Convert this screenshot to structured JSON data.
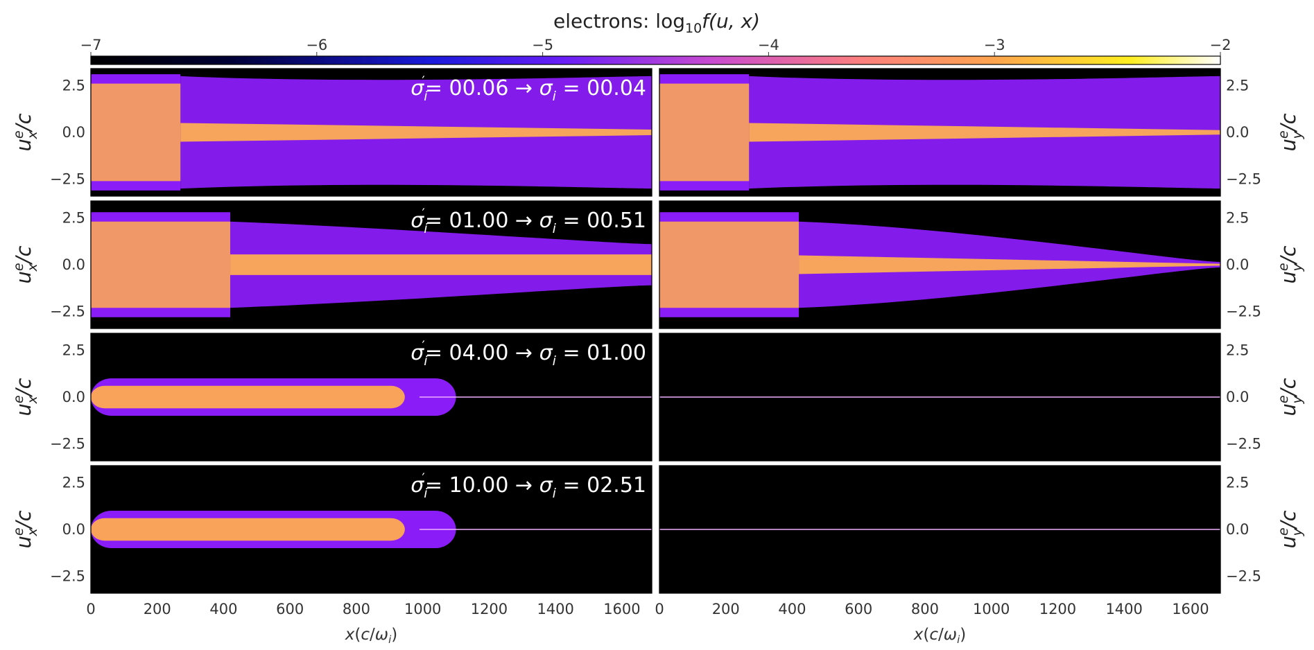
{
  "title": "electrons: log10 f(u, x)",
  "title_parts": {
    "prefix": "electrons: log",
    "sub": "10",
    "func": "f(u, x)"
  },
  "colorbar": {
    "colormap": "gnuplot2",
    "ticks": [
      "−7",
      "−6",
      "−5",
      "−4",
      "−3",
      "−2"
    ],
    "range": [
      -7,
      -2
    ]
  },
  "chart_data": {
    "type": "heatmap",
    "description": "Phase-space density of electrons (log10 f) in 4 rows x 2 columns of panels",
    "x": {
      "label": "x(c/ωi)",
      "range": [
        0,
        1690
      ],
      "ticks": [
        "0",
        "200",
        "400",
        "600",
        "800",
        "1000",
        "1200",
        "1400",
        "1600"
      ]
    },
    "y_left": {
      "label": "u_x^e/c",
      "ticks": [
        "2.5",
        "0.0",
        "−2.5"
      ],
      "range": [
        -3.4,
        3.4
      ]
    },
    "y_right": {
      "label": "u_y^e/c",
      "ticks": [
        "2.5",
        "0.0",
        "−2.5"
      ],
      "range": [
        -3.4,
        3.4
      ]
    },
    "rows": [
      {
        "sigma_prime": "00.06",
        "sigma": "00.04",
        "annotation": "σ′i = 00.06 → σi = 00.04",
        "left": {
          "front_x": 270,
          "hot_halfwidth": 2.6,
          "beam_halfwidth_end": 0.15,
          "halo_halfwidth_end": 3.0
        },
        "right": {
          "front_x": 270,
          "hot_halfwidth": 2.6,
          "beam_halfwidth_end": 0.12,
          "halo_halfwidth_end": 3.0
        }
      },
      {
        "sigma_prime": "01.00",
        "sigma": "00.51",
        "annotation": "σ′i = 01.00 → σi = 00.51",
        "left": {
          "front_x": 420,
          "hot_halfwidth": 2.3,
          "beam_halfwidth_end": 0.55,
          "halo_halfwidth_end": 1.1
        },
        "right": {
          "front_x": 420,
          "hot_halfwidth": 2.3,
          "beam_halfwidth_end": 0.05,
          "halo_halfwidth_end": 0.15
        }
      },
      {
        "sigma_prime": "04.00",
        "sigma": "01.00",
        "annotation": "σ′i = 04.00 → σi = 01.00",
        "left": {
          "front_x": 1100,
          "hot_halfwidth": 1.0,
          "beam_halfwidth_end": 0.02,
          "halo_halfwidth_end": 0.02
        },
        "right": {
          "front_x": 0,
          "hot_halfwidth": 0.0,
          "beam_halfwidth_end": 0.02,
          "halo_halfwidth_end": 0.02
        }
      },
      {
        "sigma_prime": "10.00",
        "sigma": "02.51",
        "annotation": "σ′i = 10.00 → σi = 02.51",
        "left": {
          "front_x": 1100,
          "hot_halfwidth": 1.0,
          "beam_halfwidth_end": 0.02,
          "halo_halfwidth_end": 0.02
        },
        "right": {
          "front_x": 0,
          "hot_halfwidth": 0.0,
          "beam_halfwidth_end": 0.02,
          "halo_halfwidth_end": 0.02
        }
      }
    ],
    "colors": {
      "hot": "#f9a35a",
      "beam": "#f7a45c",
      "halo": "#8a1cf7",
      "background": "#000000",
      "line": "#f0b0ff"
    }
  }
}
